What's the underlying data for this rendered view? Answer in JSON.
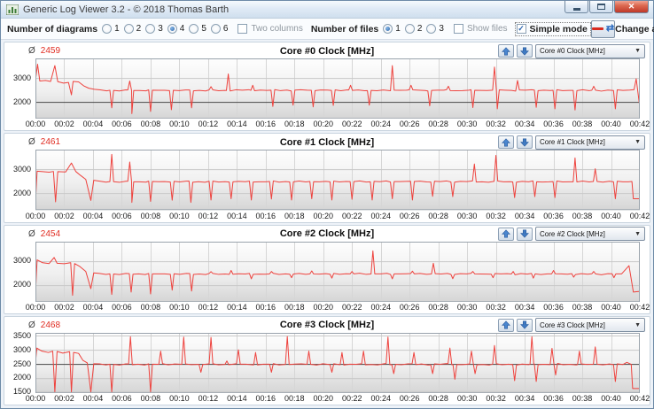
{
  "window": {
    "title": "Generic Log Viewer 3.2 - © 2018 Thomas Barth"
  },
  "toolbar": {
    "diagrams_label": "Number of diagrams",
    "diagram_options": [
      "1",
      "2",
      "3",
      "4",
      "5",
      "6"
    ],
    "diagrams_selected": "4",
    "two_columns_label": "Two columns",
    "files_label": "Number of files",
    "file_options": [
      "1",
      "2",
      "3"
    ],
    "files_selected": "1",
    "show_files_label": "Show files",
    "simple_mode_label": "Simple mode",
    "change_all_label": "Change all"
  },
  "labels": {
    "avg_symbol": "Ø"
  },
  "colors": {
    "series_line": "#ee423d",
    "average_text": "#e02d22",
    "grid": "#c9c9c9",
    "grid_dark": "#474747",
    "vgrid": "#d6d6d6",
    "plot_border": "#9aa3ac",
    "plot_bg_top": "#fefefe",
    "plot_bg_mid": "#efefef",
    "plot_bg_bottom": "#d5d5d5",
    "arrow_blue": "#3f7ac2",
    "arrow_blue_dark": "#2b5d9e"
  },
  "axis": {
    "x_ticks": [
      "00:00",
      "00:02",
      "00:04",
      "00:06",
      "00:08",
      "00:10",
      "00:12",
      "00:14",
      "00:16",
      "00:18",
      "00:20",
      "00:22",
      "00:24",
      "00:26",
      "00:28",
      "00:30",
      "00:32",
      "00:34",
      "00:36",
      "00:38",
      "00:40",
      "00:42"
    ]
  },
  "charts": [
    {
      "type": "line",
      "title": "Core #0 Clock [MHz]",
      "average": "2459",
      "selector_value": "Core #0 Clock [MHz]",
      "x_range": [
        0,
        42
      ],
      "y_range": [
        1280,
        3800
      ],
      "y_ticks": [
        {
          "v": 3000,
          "label": "3000",
          "dark": false
        },
        {
          "v": 2000,
          "label": "2000",
          "dark": true
        }
      ],
      "series": {
        "base": 2470,
        "start": [
          [
            0,
            2870
          ],
          [
            0.15,
            3560
          ],
          [
            0.3,
            2860
          ],
          [
            0.7,
            2880
          ],
          [
            1.05,
            2840
          ],
          [
            1.35,
            3500
          ],
          [
            1.55,
            2830
          ],
          [
            1.95,
            2770
          ],
          [
            2.3,
            2800
          ],
          [
            2.5,
            2280
          ],
          [
            2.62,
            2840
          ],
          [
            3.0,
            2820
          ],
          [
            3.35,
            2660
          ],
          [
            3.7,
            2560
          ],
          [
            4.1,
            2510
          ]
        ],
        "events": [
          [
            5.3,
            1740
          ],
          [
            6.55,
            2860
          ],
          [
            6.7,
            1500
          ],
          [
            8.0,
            1590
          ],
          [
            9.45,
            1660
          ],
          [
            10.85,
            1740
          ],
          [
            12.2,
            2620
          ],
          [
            13.4,
            3150
          ],
          [
            15.1,
            2680
          ],
          [
            16.5,
            1800
          ],
          [
            17.9,
            1850
          ],
          [
            19.3,
            1780
          ],
          [
            20.7,
            1840
          ],
          [
            21.9,
            2680
          ],
          [
            23.2,
            1850
          ],
          [
            24.8,
            3500
          ],
          [
            26.1,
            2680
          ],
          [
            27.4,
            1820
          ],
          [
            28.7,
            2640
          ],
          [
            30.4,
            1750
          ],
          [
            31.9,
            3440
          ],
          [
            32.1,
            1700
          ],
          [
            33.5,
            2880
          ],
          [
            34.8,
            1760
          ],
          [
            36.1,
            1700
          ],
          [
            37.5,
            1650
          ],
          [
            38.8,
            2640
          ],
          [
            40.3,
            1700
          ]
        ],
        "end": [
          [
            41.3,
            2480
          ],
          [
            41.6,
            2500
          ],
          [
            41.75,
            2950
          ],
          [
            42,
            1760
          ]
        ]
      }
    },
    {
      "type": "line",
      "title": "Core #1 Clock [MHz]",
      "average": "2461",
      "selector_value": "Core #1 Clock [MHz]",
      "x_range": [
        0,
        42
      ],
      "y_range": [
        1280,
        3800
      ],
      "y_ticks": [
        {
          "v": 3000,
          "label": "3000",
          "dark": false
        },
        {
          "v": 2000,
          "label": "2000",
          "dark": false
        }
      ],
      "series": {
        "base": 2465,
        "start": [
          [
            0,
            1620
          ],
          [
            0.12,
            2900
          ],
          [
            0.5,
            2880
          ],
          [
            0.95,
            2860
          ],
          [
            1.25,
            2890
          ],
          [
            1.4,
            1620
          ],
          [
            1.55,
            2880
          ],
          [
            2.1,
            2870
          ],
          [
            2.5,
            3240
          ],
          [
            2.8,
            2890
          ],
          [
            3.1,
            2740
          ],
          [
            3.5,
            2560
          ],
          [
            3.85,
            1680
          ],
          [
            4.05,
            2520
          ]
        ],
        "events": [
          [
            5.3,
            3600
          ],
          [
            6.55,
            3280
          ],
          [
            6.7,
            1600
          ],
          [
            8.0,
            1640
          ],
          [
            9.5,
            1690
          ],
          [
            10.8,
            1600
          ],
          [
            12.2,
            1700
          ],
          [
            13.6,
            1750
          ],
          [
            15.0,
            1700
          ],
          [
            16.4,
            1740
          ],
          [
            17.8,
            1700
          ],
          [
            19.2,
            1750
          ],
          [
            20.6,
            1700
          ],
          [
            22.0,
            1730
          ],
          [
            23.4,
            1700
          ],
          [
            24.8,
            1750
          ],
          [
            26.2,
            1700
          ],
          [
            27.6,
            1850
          ],
          [
            29.0,
            1840
          ],
          [
            30.5,
            3200
          ],
          [
            32.0,
            3560
          ],
          [
            33.3,
            1800
          ],
          [
            34.7,
            1840
          ],
          [
            36.1,
            1800
          ],
          [
            37.5,
            3450
          ],
          [
            38.9,
            3000
          ],
          [
            40.3,
            1750
          ]
        ],
        "end": [
          [
            41.2,
            2460
          ],
          [
            41.45,
            2470
          ],
          [
            41.55,
            1750
          ],
          [
            42,
            1750
          ]
        ]
      }
    },
    {
      "type": "line",
      "title": "Core #2 Clock [MHz]",
      "average": "2454",
      "selector_value": "Core #2 Clock [MHz]",
      "x_range": [
        0,
        42
      ],
      "y_range": [
        1280,
        3800
      ],
      "y_ticks": [
        {
          "v": 3000,
          "label": "3000",
          "dark": false
        },
        {
          "v": 2000,
          "label": "2000",
          "dark": false
        }
      ],
      "series": {
        "base": 2455,
        "start": [
          [
            0,
            1650
          ],
          [
            0.12,
            3040
          ],
          [
            0.5,
            2920
          ],
          [
            0.95,
            2890
          ],
          [
            1.3,
            3140
          ],
          [
            1.5,
            2900
          ],
          [
            2.0,
            2880
          ],
          [
            2.45,
            2920
          ],
          [
            2.58,
            1560
          ],
          [
            2.72,
            2890
          ],
          [
            3.1,
            2760
          ],
          [
            3.5,
            2560
          ],
          [
            3.85,
            1840
          ],
          [
            4.05,
            2500
          ]
        ],
        "events": [
          [
            5.3,
            1600
          ],
          [
            6.65,
            1700
          ],
          [
            8.0,
            1620
          ],
          [
            9.5,
            1780
          ],
          [
            10.85,
            1740
          ],
          [
            12.2,
            2550
          ],
          [
            13.6,
            2600
          ],
          [
            15.0,
            2250
          ],
          [
            16.4,
            2560
          ],
          [
            17.8,
            2300
          ],
          [
            19.2,
            2580
          ],
          [
            20.6,
            2280
          ],
          [
            22.0,
            2560
          ],
          [
            23.45,
            3420
          ],
          [
            24.8,
            2250
          ],
          [
            26.2,
            2570
          ],
          [
            27.65,
            2900
          ],
          [
            29.0,
            2260
          ],
          [
            30.4,
            2560
          ],
          [
            31.8,
            2300
          ],
          [
            33.2,
            2560
          ],
          [
            34.6,
            2280
          ],
          [
            36.0,
            2600
          ],
          [
            37.4,
            2320
          ],
          [
            38.8,
            2560
          ],
          [
            40.2,
            2300
          ]
        ],
        "end": [
          [
            41.25,
            2800
          ],
          [
            41.55,
            1700
          ],
          [
            42,
            1730
          ]
        ]
      }
    },
    {
      "type": "line",
      "title": "Core #3 Clock [MHz]",
      "average": "2468",
      "selector_value": "Core #3 Clock [MHz]",
      "x_range": [
        0,
        42
      ],
      "y_range": [
        1450,
        3600
      ],
      "y_ticks": [
        {
          "v": 3500,
          "label": "3500",
          "dark": false
        },
        {
          "v": 3000,
          "label": "3000",
          "dark": false
        },
        {
          "v": 2500,
          "label": "2500",
          "dark": true
        },
        {
          "v": 2000,
          "label": "2000",
          "dark": false
        },
        {
          "v": 1500,
          "label": "1500",
          "dark": false
        }
      ],
      "series": {
        "base": 2480,
        "start": [
          [
            0,
            2550
          ],
          [
            0.1,
            3060
          ],
          [
            0.45,
            2950
          ],
          [
            0.9,
            2900
          ],
          [
            1.2,
            2950
          ],
          [
            1.35,
            1500
          ],
          [
            1.5,
            2940
          ],
          [
            1.9,
            2880
          ],
          [
            2.38,
            2930
          ],
          [
            2.5,
            1500
          ],
          [
            2.65,
            2900
          ],
          [
            3.0,
            2870
          ],
          [
            3.3,
            2620
          ],
          [
            3.6,
            2530
          ],
          [
            3.85,
            1500
          ],
          [
            4.05,
            2500
          ]
        ],
        "events": [
          [
            5.3,
            1500
          ],
          [
            6.6,
            3460
          ],
          [
            8.0,
            1500
          ],
          [
            8.7,
            2950
          ],
          [
            10.3,
            3450
          ],
          [
            11.5,
            2200
          ],
          [
            12.2,
            3440
          ],
          [
            13.3,
            2600
          ],
          [
            14.1,
            3000
          ],
          [
            15.3,
            2900
          ],
          [
            16.4,
            2200
          ],
          [
            17.5,
            3470
          ],
          [
            19.0,
            2950
          ],
          [
            20.6,
            2200
          ],
          [
            21.3,
            2900
          ],
          [
            22.8,
            2950
          ],
          [
            24.5,
            3450
          ],
          [
            24.9,
            2150
          ],
          [
            26.3,
            2900
          ],
          [
            27.6,
            2150
          ],
          [
            28.8,
            3060
          ],
          [
            29.15,
            1950
          ],
          [
            30.3,
            2950
          ],
          [
            30.55,
            2150
          ],
          [
            31.9,
            3150
          ],
          [
            33.3,
            1900
          ],
          [
            34.5,
            3460
          ],
          [
            34.8,
            1870
          ],
          [
            35.9,
            3050
          ],
          [
            36.15,
            2100
          ],
          [
            37.8,
            2950
          ],
          [
            38.9,
            3100
          ],
          [
            40.3,
            1870
          ]
        ],
        "end": [
          [
            41.1,
            2550
          ],
          [
            41.4,
            2480
          ],
          [
            41.5,
            1620
          ],
          [
            42,
            1620
          ]
        ]
      }
    }
  ]
}
